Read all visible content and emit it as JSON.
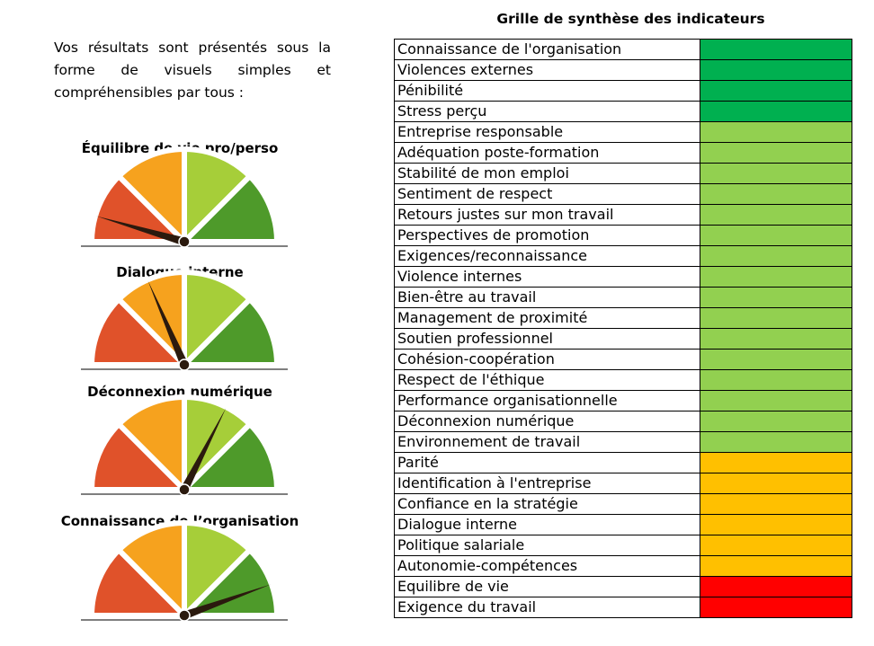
{
  "intro_text": "Vos résultats sont présentés sous la forme de visuels simples et compréhensibles par tous :",
  "colors": {
    "red": "#E0522A",
    "orange": "#F6A21E",
    "light_green": "#A6CE39",
    "dark_green": "#4E9A2A",
    "needle": "#2B1A0E",
    "grid_dark_green": "#00B050",
    "grid_light_green": "#92D050",
    "grid_orange": "#FFC000",
    "grid_red": "#FF0000"
  },
  "gauges": [
    {
      "title": "Équilibre de vie pro/perso",
      "level": 0.09
    },
    {
      "title": "Dialogue interne",
      "level": 0.37
    },
    {
      "title": "Déconnexion numérique",
      "level": 0.65
    },
    {
      "title": "Connaissance  de l’organisation",
      "level": 0.89
    }
  ],
  "table": {
    "title": "Grille de synthèse des indicateurs",
    "rows": [
      {
        "label": "Connaissance de l'organisation",
        "status": "dark_green"
      },
      {
        "label": "Violences externes",
        "status": "dark_green"
      },
      {
        "label": "Pénibilité",
        "status": "dark_green"
      },
      {
        "label": "Stress perçu",
        "status": "dark_green"
      },
      {
        "label": "Entreprise responsable",
        "status": "light_green"
      },
      {
        "label": "Adéquation poste-formation",
        "status": "light_green"
      },
      {
        "label": "Stabilité de mon emploi",
        "status": "light_green"
      },
      {
        "label": "Sentiment de respect",
        "status": "light_green"
      },
      {
        "label": "Retours justes sur mon travail",
        "status": "light_green"
      },
      {
        "label": "Perspectives de promotion",
        "status": "light_green"
      },
      {
        "label": "Exigences/reconnaissance",
        "status": "light_green"
      },
      {
        "label": "Violence internes",
        "status": "light_green"
      },
      {
        "label": "Bien-être au travail",
        "status": "light_green"
      },
      {
        "label": "Management de proximité",
        "status": "light_green"
      },
      {
        "label": "Soutien professionnel",
        "status": "light_green"
      },
      {
        "label": "Cohésion-coopération",
        "status": "light_green"
      },
      {
        "label": "Respect de l'éthique",
        "status": "light_green"
      },
      {
        "label": "Performance organisationnelle",
        "status": "light_green"
      },
      {
        "label": "Déconnexion numérique",
        "status": "light_green"
      },
      {
        "label": "Environnement de travail",
        "status": "light_green"
      },
      {
        "label": "Parité",
        "status": "orange"
      },
      {
        "label": "Identification à l'entreprise",
        "status": "orange"
      },
      {
        "label": "Confiance en la stratégie",
        "status": "orange"
      },
      {
        "label": "Dialogue interne",
        "status": "orange"
      },
      {
        "label": "Politique salariale",
        "status": "orange"
      },
      {
        "label": "Autonomie-compétences",
        "status": "orange"
      },
      {
        "label": "Equilibre de vie",
        "status": "red"
      },
      {
        "label": "Exigence du travail",
        "status": "red"
      }
    ]
  }
}
